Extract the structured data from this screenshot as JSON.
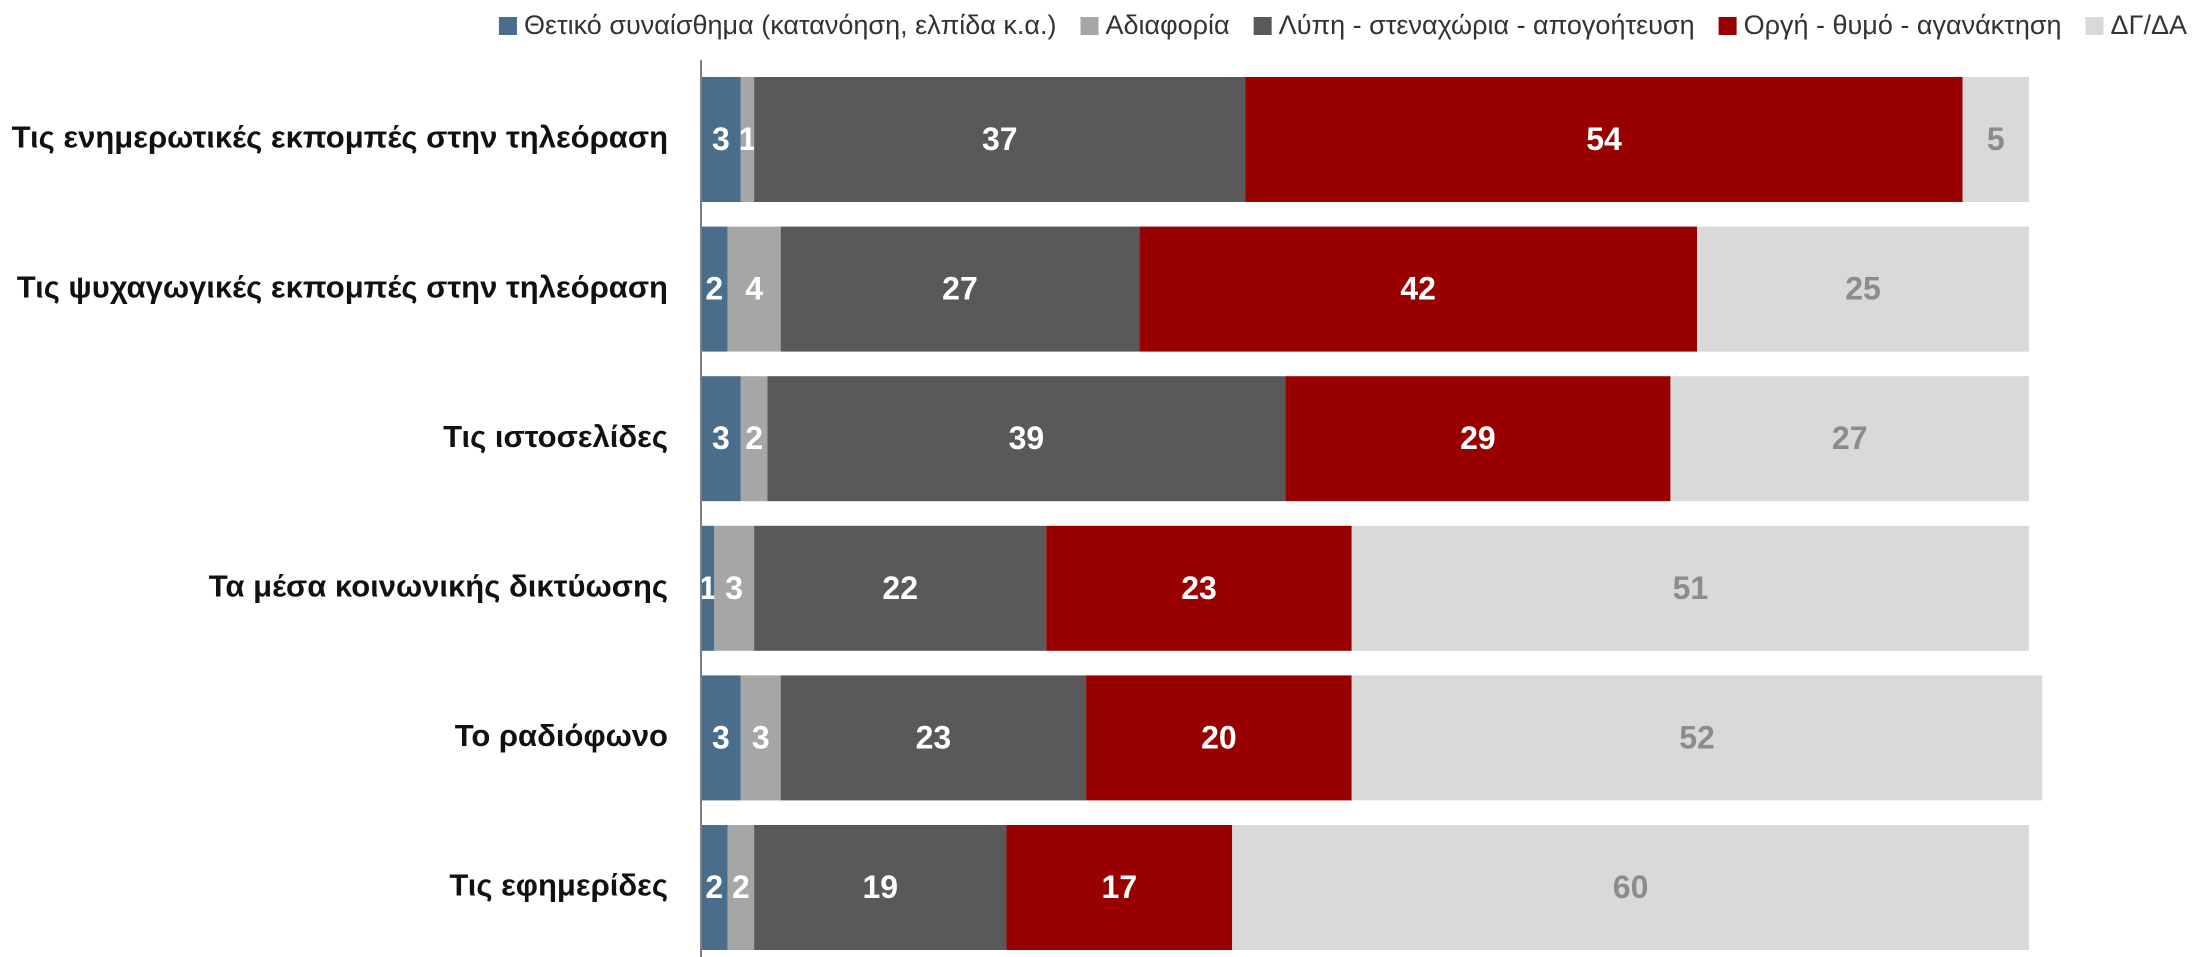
{
  "chart_data": {
    "type": "bar",
    "orientation": "horizontal",
    "stacked": true,
    "title": "",
    "xlabel": "",
    "ylabel": "",
    "xlim": [
      0,
      100
    ],
    "grid": false,
    "legend_position": "top",
    "categories": [
      "Τις ενημερωτικές εκπομπές στην τηλεόραση",
      "Τις ψυχαγωγικές εκπομπές στην τηλεόραση",
      "Τις ιστοσελίδες",
      "Τα μέσα κοινωνικής δικτύωσης",
      "Το ραδιόφωνο",
      "Τις εφημερίδες"
    ],
    "series": [
      {
        "name": "Θετικό συναίσθημα (κατανόηση, ελπίδα κ.α.)",
        "color": "#4a6d8c",
        "label_color": "#ffffff",
        "values": [
          3,
          2,
          3,
          1,
          3,
          2
        ]
      },
      {
        "name": "Αδιαφορία",
        "color": "#a6a6a6",
        "label_color": "#ffffff",
        "values": [
          1,
          4,
          2,
          3,
          3,
          2
        ]
      },
      {
        "name": "Λύπη - στεναχώρια - απογοήτευση",
        "color": "#595959",
        "label_color": "#ffffff",
        "values": [
          37,
          27,
          39,
          22,
          23,
          19
        ]
      },
      {
        "name": "Οργή - θυμό - αγανάκτηση",
        "color": "#990000",
        "label_color": "#ffffff",
        "values": [
          54,
          42,
          29,
          23,
          20,
          17
        ]
      },
      {
        "name": "ΔΓ/ΔΑ",
        "color": "#d9d9d9",
        "label_color": "#8c8c8c",
        "values": [
          5,
          25,
          27,
          51,
          52,
          60
        ]
      }
    ]
  }
}
